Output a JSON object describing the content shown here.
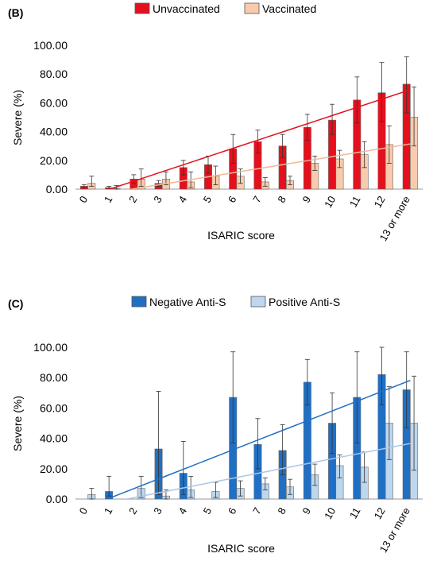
{
  "chart_data": [
    {
      "type": "bar",
      "panel_label": "(B)",
      "xlabel": "ISARIC score",
      "ylabel": "Severe (%)",
      "ylim": [
        0,
        100
      ],
      "yticks": [
        "0.00",
        "20.00",
        "40.00",
        "60.00",
        "80.00",
        "100.00"
      ],
      "legend_position": "top",
      "grid": false,
      "categories": [
        "0",
        "1",
        "2",
        "3",
        "4",
        "5",
        "6",
        "7",
        "8",
        "9",
        "10",
        "11",
        "12",
        "13 or more"
      ],
      "series": [
        {
          "name": "Unvaccinated",
          "color": "#e5101d",
          "values": [
            2,
            1,
            7,
            4,
            15,
            17,
            28,
            33,
            30,
            43,
            48,
            62,
            67,
            73
          ],
          "err_low": [
            1,
            0.5,
            3,
            2,
            5,
            6,
            10,
            8,
            8,
            9,
            10,
            16,
            20,
            20
          ],
          "err_high": [
            1,
            1,
            3,
            2,
            5,
            6,
            10,
            8,
            8,
            9,
            11,
            16,
            21,
            19
          ],
          "trend": [
            -5,
            0.7,
            6.4,
            12.1,
            17.8,
            23.5,
            29.2,
            34.9,
            40.6,
            46.3,
            52.0,
            57.7,
            63.4,
            69.1
          ]
        },
        {
          "name": "Vaccinated",
          "color": "#f8cbad",
          "values": [
            4,
            0.5,
            7,
            7,
            5,
            9,
            9,
            5,
            6,
            18,
            21,
            24,
            31,
            50
          ],
          "err_low": [
            2,
            0.5,
            5,
            4,
            4,
            6,
            5,
            3,
            3,
            5,
            6,
            9,
            13,
            20
          ],
          "err_high": [
            5,
            2,
            7,
            5,
            7,
            7,
            5,
            3,
            3,
            5,
            6,
            9,
            13,
            21
          ],
          "trend": [
            -5,
            -2.2,
            0.6,
            3.4,
            6.2,
            9.0,
            11.8,
            14.6,
            17.4,
            20.2,
            23.0,
            25.8,
            28.6,
            31.4
          ]
        }
      ]
    },
    {
      "type": "bar",
      "panel_label": "(C)",
      "xlabel": "ISARIC score",
      "ylabel": "Severe (%)",
      "ylim": [
        0,
        100
      ],
      "yticks": [
        "0.00",
        "20.00",
        "40.00",
        "60.00",
        "80.00",
        "100.00"
      ],
      "legend_position": "top",
      "grid": false,
      "categories": [
        "0",
        "1",
        "2",
        "3",
        "4",
        "5",
        "6",
        "7",
        "8",
        "9",
        "10",
        "11",
        "12",
        "13 or more"
      ],
      "series": [
        {
          "name": "Negative Anti-S",
          "color": "#1f6fc5",
          "values": [
            0,
            5,
            0,
            33,
            17,
            0,
            67,
            36,
            32,
            77,
            50,
            67,
            82,
            72
          ],
          "err_low": [
            0,
            3,
            0,
            30,
            14,
            0,
            30,
            16,
            16,
            15,
            20,
            30,
            20,
            25
          ],
          "err_high": [
            0,
            10,
            0,
            38,
            21,
            0,
            30,
            17,
            17,
            15,
            20,
            30,
            18,
            25
          ],
          "trend": [
            -5,
            1.4,
            7.8,
            14.2,
            20.6,
            27.0,
            33.4,
            39.8,
            46.2,
            52.6,
            59.0,
            65.4,
            71.8,
            78.2
          ]
        },
        {
          "name": "Positive Anti-S",
          "color": "#bdd7ee",
          "values": [
            3,
            0,
            7,
            2,
            6,
            5,
            7,
            10,
            8,
            16,
            22,
            21,
            50,
            50
          ],
          "err_low": [
            3,
            0,
            6,
            2,
            5,
            4,
            5,
            4,
            5,
            7,
            8,
            10,
            24,
            31
          ],
          "err_high": [
            4,
            0,
            8,
            4,
            9,
            6,
            5,
            4,
            5,
            7,
            7,
            10,
            24,
            31
          ],
          "trend": [
            -5,
            -1.8,
            1.4,
            4.6,
            7.8,
            11.0,
            14.2,
            17.4,
            20.6,
            23.8,
            27.0,
            30.2,
            33.4,
            36.6
          ]
        }
      ]
    }
  ]
}
